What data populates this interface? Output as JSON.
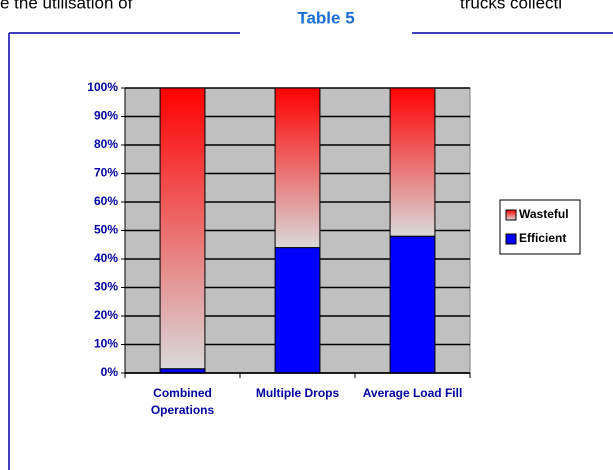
{
  "background_text": [
    "e the utilisation of",
    "trucks  collecti"
  ],
  "chart_data": {
    "type": "stacked_bar",
    "title": "Table 5",
    "categories": [
      "Combined Operations",
      "Multiple Drops",
      "Average Load Fill"
    ],
    "series": [
      {
        "name": "Wasteful",
        "color": "#ff0000",
        "gradient_end": "#d9d9d9",
        "values": [
          98.5,
          56,
          52
        ]
      },
      {
        "name": "Efficient",
        "color": "#0000ff",
        "values": [
          1.5,
          44,
          48
        ]
      }
    ],
    "ylim": [
      0,
      100
    ],
    "yticks": [
      {
        "value": 0,
        "label": "0%"
      },
      {
        "value": 10,
        "label": "10%"
      },
      {
        "value": 20,
        "label": "20%"
      },
      {
        "value": 30,
        "label": "30%"
      },
      {
        "value": 40,
        "label": "40%"
      },
      {
        "value": 50,
        "label": "50%"
      },
      {
        "value": 60,
        "label": "60%"
      },
      {
        "value": 70,
        "label": "70%"
      },
      {
        "value": 80,
        "label": "80%"
      },
      {
        "value": 90,
        "label": "90%"
      },
      {
        "value": 100,
        "label": "100%"
      }
    ],
    "grid": true,
    "legend": "right",
    "plot_background": "#c0c0c0"
  }
}
